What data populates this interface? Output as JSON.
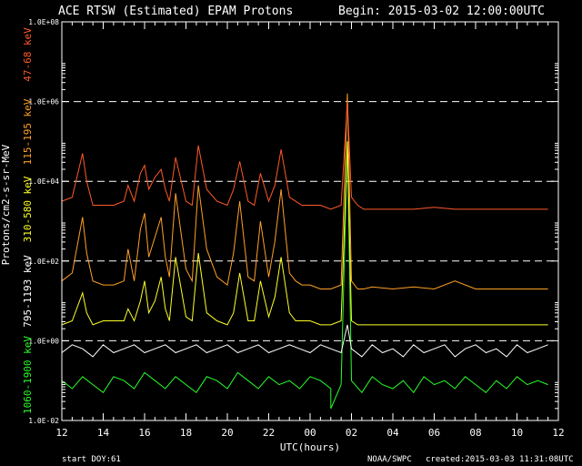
{
  "chart_data": {
    "type": "line",
    "title": "ACE RTSW (Estimated) EPAM Protons",
    "begin_label": "Begin: 2015-03-02 12:00:00UTC",
    "xlabel": "UTC(hours)",
    "ylabel": "Protons/cm2-s-sr-MeV",
    "yscale": "log",
    "ylim_exp": [
      -2,
      8
    ],
    "y_ticks": [
      "1.0E-02",
      "1.0E+00",
      "1.0E+02",
      "1.0E+04",
      "1.0E+06",
      "1.0E+08"
    ],
    "y_ticks_exp": [
      -2,
      0,
      2,
      4,
      6,
      8
    ],
    "dashed_gridlines_exp": [
      0,
      2,
      4,
      6
    ],
    "x_ticks": [
      "12",
      "14",
      "16",
      "18",
      "20",
      "22",
      "00",
      "02",
      "04",
      "06",
      "08",
      "10",
      "12"
    ],
    "xlim_hours": [
      0,
      24
    ],
    "series": [
      {
        "name": "47-68 keV",
        "color": "#ff5a28",
        "x": [
          0,
          0.5,
          1,
          1.2,
          1.5,
          2,
          2.5,
          3,
          3.2,
          3.5,
          3.8,
          4,
          4.2,
          4.5,
          4.8,
          5,
          5.2,
          5.5,
          6,
          6.3,
          6.6,
          7,
          7.5,
          8,
          8.3,
          8.6,
          9,
          9.3,
          9.6,
          10,
          10.3,
          10.6,
          11,
          11.3,
          11.6,
          12,
          12.5,
          13,
          13.5,
          13.8,
          14,
          14.3,
          14.6,
          15,
          16,
          17,
          18,
          19,
          20,
          21,
          22,
          23,
          23.5
        ],
        "y": [
          3.5,
          3.6,
          4.7,
          4.0,
          3.4,
          3.4,
          3.4,
          3.5,
          3.9,
          3.5,
          4.2,
          4.4,
          3.8,
          4.1,
          4.3,
          3.8,
          3.5,
          4.6,
          3.5,
          3.4,
          4.9,
          3.8,
          3.5,
          3.4,
          3.8,
          4.5,
          3.5,
          3.4,
          4.2,
          3.5,
          3.9,
          4.8,
          3.6,
          3.5,
          3.4,
          3.4,
          3.4,
          3.3,
          3.4,
          6.0,
          3.6,
          3.4,
          3.3,
          3.3,
          3.3,
          3.3,
          3.35,
          3.3,
          3.3,
          3.3,
          3.3,
          3.3,
          3.3
        ]
      },
      {
        "name": "115-195 keV",
        "color": "#ffa028",
        "x": [
          0,
          0.5,
          1,
          1.2,
          1.5,
          2,
          2.5,
          3,
          3.2,
          3.5,
          3.8,
          4,
          4.2,
          4.5,
          4.8,
          5,
          5.2,
          5.5,
          6,
          6.3,
          6.6,
          7,
          7.5,
          8,
          8.3,
          8.6,
          9,
          9.3,
          9.6,
          10,
          10.3,
          10.6,
          11,
          11.3,
          11.6,
          12,
          12.5,
          13,
          13.5,
          13.8,
          14,
          14.3,
          14.6,
          15,
          16,
          17,
          18,
          19,
          20,
          21,
          22,
          23,
          23.5
        ],
        "y": [
          1.5,
          1.7,
          3.1,
          2.2,
          1.5,
          1.4,
          1.4,
          1.5,
          2.3,
          1.5,
          2.8,
          3.2,
          2.1,
          2.6,
          3.1,
          2.1,
          1.6,
          3.7,
          1.8,
          1.5,
          3.9,
          2.3,
          1.6,
          1.4,
          2.2,
          3.5,
          1.6,
          1.5,
          3.0,
          1.6,
          2.5,
          3.8,
          1.7,
          1.5,
          1.4,
          1.4,
          1.3,
          1.3,
          1.4,
          6.2,
          1.5,
          1.3,
          1.3,
          1.35,
          1.3,
          1.35,
          1.3,
          1.5,
          1.3,
          1.3,
          1.3,
          1.3,
          1.3
        ]
      },
      {
        "name": "310-580 keV",
        "color": "#ffff28",
        "x": [
          0,
          0.5,
          1,
          1.2,
          1.5,
          2,
          2.5,
          3,
          3.2,
          3.5,
          3.8,
          4,
          4.2,
          4.5,
          4.8,
          5,
          5.2,
          5.5,
          6,
          6.3,
          6.6,
          7,
          7.5,
          8,
          8.3,
          8.6,
          9,
          9.3,
          9.6,
          10,
          10.3,
          10.6,
          11,
          11.3,
          11.6,
          12,
          12.5,
          13,
          13.5,
          13.8,
          14,
          14.3,
          14.6,
          15,
          16,
          17,
          18,
          19,
          20,
          21,
          22,
          23,
          23.5
        ],
        "y": [
          0.4,
          0.5,
          1.2,
          0.7,
          0.4,
          0.5,
          0.5,
          0.5,
          0.8,
          0.5,
          1.0,
          1.5,
          0.7,
          1.0,
          1.6,
          0.8,
          0.5,
          2.1,
          0.6,
          0.5,
          2.2,
          0.7,
          0.5,
          0.4,
          0.7,
          1.7,
          0.5,
          0.5,
          1.5,
          0.6,
          1.1,
          2.1,
          0.7,
          0.5,
          0.5,
          0.5,
          0.4,
          0.4,
          0.5,
          5.0,
          0.5,
          0.4,
          0.4,
          0.4,
          0.4,
          0.4,
          0.4,
          0.4,
          0.4,
          0.4,
          0.4,
          0.4,
          0.4
        ]
      },
      {
        "name": "795-1193 keV",
        "color": "#ffffff",
        "x": [
          0,
          0.5,
          1,
          1.5,
          2,
          2.5,
          3,
          3.5,
          4,
          4.5,
          5,
          5.5,
          6,
          6.5,
          7,
          7.5,
          8,
          8.5,
          9,
          9.5,
          10,
          10.5,
          11,
          11.5,
          12,
          12.5,
          13,
          13.5,
          13.8,
          14,
          14.5,
          15,
          15.5,
          16,
          16.5,
          17,
          17.5,
          18,
          18.5,
          19,
          19.5,
          20,
          20.5,
          21,
          21.5,
          22,
          22.5,
          23,
          23.5
        ],
        "y": [
          -0.3,
          -0.1,
          -0.2,
          -0.4,
          -0.1,
          -0.3,
          -0.2,
          -0.1,
          -0.3,
          -0.2,
          -0.1,
          -0.3,
          -0.2,
          -0.1,
          -0.3,
          -0.2,
          -0.1,
          -0.3,
          -0.2,
          -0.1,
          -0.3,
          -0.2,
          -0.1,
          -0.2,
          -0.3,
          -0.1,
          -0.2,
          -0.3,
          0.4,
          -0.2,
          -0.4,
          -0.1,
          -0.3,
          -0.2,
          -0.4,
          -0.1,
          -0.3,
          -0.2,
          -0.1,
          -0.4,
          -0.2,
          -0.1,
          -0.3,
          -0.2,
          -0.4,
          -0.1,
          -0.3,
          -0.2,
          -0.1
        ]
      },
      {
        "name": "1060-1900 keV",
        "color": "#28ff28",
        "x": [
          0,
          0.5,
          1,
          1.5,
          2,
          2.5,
          3,
          3.5,
          4,
          4.5,
          5,
          5.5,
          6,
          6.5,
          7,
          7.5,
          8,
          8.5,
          9,
          9.5,
          10,
          10.5,
          11,
          11.5,
          12,
          12.5,
          13,
          13,
          13.5,
          13.8,
          14,
          14.5,
          15,
          15.5,
          16,
          16.5,
          17,
          17.5,
          18,
          18.5,
          19,
          19.5,
          20,
          20.5,
          21,
          21.5,
          22,
          22.5,
          23,
          23.5
        ],
        "y": [
          -1.0,
          -1.2,
          -0.9,
          -1.1,
          -1.3,
          -0.9,
          -1.0,
          -1.2,
          -0.8,
          -1.0,
          -1.2,
          -0.9,
          -1.1,
          -1.3,
          -0.9,
          -1.0,
          -1.2,
          -0.8,
          -1.0,
          -1.2,
          -0.9,
          -1.1,
          -1.0,
          -1.2,
          -0.9,
          -1.0,
          -1.2,
          -1.7,
          -1.1,
          5.0,
          -1.0,
          -1.3,
          -0.9,
          -1.1,
          -1.2,
          -1.0,
          -1.3,
          -0.9,
          -1.1,
          -1.0,
          -1.2,
          -0.9,
          -1.1,
          -1.3,
          -1.0,
          -1.2,
          -0.9,
          -1.1,
          -1.0,
          -1.1
        ]
      }
    ],
    "footer": {
      "start_doy_label": "start DOY:",
      "start_doy_value": "61",
      "source": "NOAA/SWPC",
      "created": "created:2015-03-03 11:31:08UTC"
    }
  }
}
